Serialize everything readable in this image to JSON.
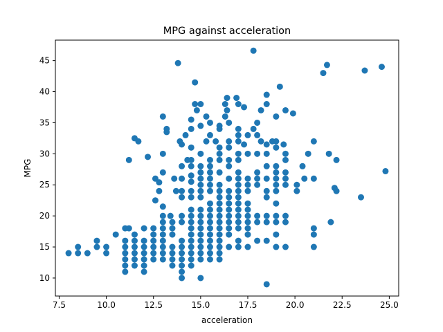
{
  "chart_data": {
    "type": "scatter",
    "title": "MPG against acceleration",
    "xlabel": "acceleration",
    "ylabel": "MPG",
    "xlim": [
      7.3,
      25.5
    ],
    "ylim": [
      7.1,
      48.3
    ],
    "xticks": [
      7.5,
      10.0,
      12.5,
      15.0,
      17.5,
      20.0,
      22.5,
      25.0
    ],
    "xtick_labels": [
      "7.5",
      "10.0",
      "12.5",
      "15.0",
      "17.5",
      "20.0",
      "22.5",
      "25.0"
    ],
    "yticks": [
      10,
      15,
      20,
      25,
      30,
      35,
      40,
      45
    ],
    "ytick_labels": [
      "10",
      "15",
      "20",
      "25",
      "30",
      "35",
      "40",
      "45"
    ],
    "grid": false,
    "color": "#1f77b4",
    "points": [
      [
        8.0,
        14
      ],
      [
        8.5,
        14
      ],
      [
        8.5,
        15
      ],
      [
        9.0,
        14
      ],
      [
        9.5,
        16
      ],
      [
        9.5,
        15
      ],
      [
        10.0,
        15
      ],
      [
        10.0,
        14
      ],
      [
        10.5,
        17
      ],
      [
        11.0,
        18
      ],
      [
        11.2,
        18
      ],
      [
        11.0,
        16
      ],
      [
        11.0,
        15
      ],
      [
        11.0,
        14
      ],
      [
        11.0,
        13
      ],
      [
        11.0,
        12
      ],
      [
        11.0,
        11
      ],
      [
        11.2,
        29
      ],
      [
        11.5,
        32.5
      ],
      [
        11.7,
        32
      ],
      [
        11.5,
        17
      ],
      [
        11.5,
        16
      ],
      [
        11.5,
        15
      ],
      [
        11.5,
        14
      ],
      [
        11.5,
        13
      ],
      [
        11.5,
        12
      ],
      [
        12.0,
        18
      ],
      [
        12.0,
        16
      ],
      [
        12.0,
        15
      ],
      [
        12.0,
        14
      ],
      [
        12.0,
        13
      ],
      [
        12.0,
        12
      ],
      [
        12.0,
        11
      ],
      [
        12.2,
        29.5
      ],
      [
        12.5,
        18
      ],
      [
        12.5,
        17
      ],
      [
        12.5,
        16
      ],
      [
        12.5,
        15
      ],
      [
        12.5,
        14
      ],
      [
        12.5,
        13
      ],
      [
        12.6,
        26
      ],
      [
        12.8,
        24
      ],
      [
        12.8,
        25.4
      ],
      [
        12.6,
        22.5
      ],
      [
        13.0,
        36
      ],
      [
        13.0,
        30
      ],
      [
        13.0,
        27
      ],
      [
        13.0,
        21.5
      ],
      [
        13.0,
        20
      ],
      [
        13.0,
        19
      ],
      [
        13.0,
        18
      ],
      [
        13.0,
        17
      ],
      [
        13.0,
        16
      ],
      [
        13.0,
        15
      ],
      [
        13.0,
        14
      ],
      [
        13.0,
        13
      ],
      [
        13.2,
        34
      ],
      [
        13.2,
        33.5
      ],
      [
        13.4,
        20
      ],
      [
        13.5,
        19
      ],
      [
        13.5,
        18
      ],
      [
        13.5,
        17
      ],
      [
        13.5,
        15
      ],
      [
        13.5,
        14
      ],
      [
        13.5,
        13
      ],
      [
        13.5,
        12
      ],
      [
        13.6,
        26
      ],
      [
        13.7,
        24
      ],
      [
        13.8,
        44.6
      ],
      [
        13.9,
        32
      ],
      [
        14.0,
        31.5
      ],
      [
        14.0,
        28
      ],
      [
        14.0,
        26
      ],
      [
        14.0,
        24
      ],
      [
        14.0,
        23
      ],
      [
        14.0,
        20
      ],
      [
        14.0,
        19
      ],
      [
        14.0,
        16
      ],
      [
        14.0,
        15
      ],
      [
        14.0,
        14
      ],
      [
        14.0,
        13
      ],
      [
        14.0,
        12
      ],
      [
        14.0,
        11
      ],
      [
        14.0,
        10
      ],
      [
        14.2,
        33
      ],
      [
        14.3,
        29
      ],
      [
        14.5,
        35.5
      ],
      [
        14.5,
        34
      ],
      [
        14.5,
        31
      ],
      [
        14.5,
        29
      ],
      [
        14.5,
        28
      ],
      [
        14.5,
        26.5
      ],
      [
        14.5,
        25.5
      ],
      [
        14.5,
        24
      ],
      [
        14.5,
        23
      ],
      [
        14.5,
        21
      ],
      [
        14.5,
        20
      ],
      [
        14.5,
        19
      ],
      [
        14.5,
        18
      ],
      [
        14.5,
        17
      ],
      [
        14.5,
        16
      ],
      [
        14.5,
        15
      ],
      [
        14.5,
        14
      ],
      [
        14.5,
        13
      ],
      [
        14.5,
        12
      ],
      [
        14.7,
        41.5
      ],
      [
        14.7,
        38
      ],
      [
        14.8,
        37
      ],
      [
        15.0,
        38
      ],
      [
        15.0,
        34.5
      ],
      [
        15.0,
        30
      ],
      [
        15.0,
        28
      ],
      [
        15.0,
        27
      ],
      [
        15.0,
        26
      ],
      [
        15.0,
        25
      ],
      [
        15.0,
        24
      ],
      [
        15.0,
        23
      ],
      [
        15.0,
        21
      ],
      [
        15.0,
        20
      ],
      [
        15.0,
        19
      ],
      [
        15.0,
        18
      ],
      [
        15.0,
        17
      ],
      [
        15.0,
        16
      ],
      [
        15.0,
        15
      ],
      [
        15.0,
        14
      ],
      [
        15.0,
        13
      ],
      [
        15.0,
        10
      ],
      [
        15.3,
        36
      ],
      [
        15.3,
        32
      ],
      [
        15.5,
        35
      ],
      [
        15.5,
        33
      ],
      [
        15.5,
        29
      ],
      [
        15.5,
        28
      ],
      [
        15.5,
        27
      ],
      [
        15.5,
        26
      ],
      [
        15.5,
        25
      ],
      [
        15.5,
        24
      ],
      [
        15.5,
        22
      ],
      [
        15.5,
        21
      ],
      [
        15.5,
        20
      ],
      [
        15.5,
        19
      ],
      [
        15.5,
        18
      ],
      [
        15.5,
        17
      ],
      [
        15.5,
        16
      ],
      [
        15.5,
        15
      ],
      [
        15.5,
        14
      ],
      [
        15.5,
        13
      ],
      [
        15.8,
        32
      ],
      [
        16.0,
        34.5
      ],
      [
        16.0,
        34
      ],
      [
        16.0,
        31
      ],
      [
        16.0,
        30
      ],
      [
        16.0,
        29
      ],
      [
        16.0,
        27
      ],
      [
        16.0,
        25
      ],
      [
        16.0,
        24
      ],
      [
        16.0,
        23
      ],
      [
        16.0,
        22
      ],
      [
        16.0,
        21
      ],
      [
        16.0,
        20
      ],
      [
        16.0,
        19
      ],
      [
        16.0,
        18
      ],
      [
        16.0,
        17
      ],
      [
        16.0,
        16
      ],
      [
        16.0,
        15
      ],
      [
        16.0,
        14
      ],
      [
        16.0,
        13
      ],
      [
        16.3,
        38
      ],
      [
        16.3,
        36
      ],
      [
        16.4,
        39
      ],
      [
        16.4,
        37
      ],
      [
        16.5,
        35
      ],
      [
        16.5,
        32
      ],
      [
        16.5,
        31
      ],
      [
        16.5,
        29
      ],
      [
        16.5,
        28
      ],
      [
        16.5,
        26
      ],
      [
        16.5,
        24
      ],
      [
        16.5,
        23
      ],
      [
        16.5,
        22
      ],
      [
        16.5,
        21
      ],
      [
        16.5,
        20
      ],
      [
        16.5,
        19
      ],
      [
        16.5,
        18
      ],
      [
        16.5,
        17
      ],
      [
        16.5,
        15
      ],
      [
        16.9,
        39
      ],
      [
        17.0,
        38
      ],
      [
        17.0,
        34
      ],
      [
        17.0,
        33
      ],
      [
        17.0,
        32
      ],
      [
        17.0,
        30
      ],
      [
        17.0,
        29
      ],
      [
        17.0,
        27
      ],
      [
        17.0,
        26
      ],
      [
        17.0,
        25
      ],
      [
        17.0,
        24
      ],
      [
        17.0,
        23
      ],
      [
        17.0,
        22
      ],
      [
        17.0,
        21
      ],
      [
        17.0,
        20
      ],
      [
        17.0,
        19
      ],
      [
        17.0,
        18
      ],
      [
        17.0,
        16
      ],
      [
        17.0,
        15
      ],
      [
        17.3,
        37.5
      ],
      [
        17.3,
        31.5
      ],
      [
        17.5,
        33
      ],
      [
        17.5,
        30
      ],
      [
        17.5,
        26
      ],
      [
        17.5,
        25
      ],
      [
        17.5,
        24
      ],
      [
        17.5,
        22
      ],
      [
        17.5,
        21
      ],
      [
        17.5,
        20
      ],
      [
        17.5,
        19
      ],
      [
        17.5,
        18
      ],
      [
        17.5,
        17
      ],
      [
        17.5,
        15
      ],
      [
        17.8,
        46.6
      ],
      [
        17.8,
        34
      ],
      [
        18.0,
        35
      ],
      [
        18.0,
        33
      ],
      [
        18.0,
        30
      ],
      [
        18.0,
        27
      ],
      [
        18.0,
        26
      ],
      [
        18.0,
        25
      ],
      [
        18.0,
        20
      ],
      [
        18.0,
        19
      ],
      [
        18.0,
        16
      ],
      [
        18.2,
        37
      ],
      [
        18.2,
        32
      ],
      [
        18.5,
        39.5
      ],
      [
        18.5,
        38
      ],
      [
        18.5,
        31.5
      ],
      [
        18.5,
        30
      ],
      [
        18.5,
        28
      ],
      [
        18.5,
        26
      ],
      [
        18.5,
        24
      ],
      [
        18.5,
        23
      ],
      [
        18.5,
        20
      ],
      [
        18.5,
        19
      ],
      [
        18.5,
        16
      ],
      [
        18.5,
        9
      ],
      [
        18.8,
        32
      ],
      [
        19.0,
        36
      ],
      [
        19.0,
        32
      ],
      [
        19.0,
        31
      ],
      [
        19.0,
        28
      ],
      [
        19.0,
        27
      ],
      [
        19.0,
        26
      ],
      [
        19.0,
        25
      ],
      [
        19.0,
        24
      ],
      [
        19.0,
        22
      ],
      [
        19.0,
        20
      ],
      [
        19.0,
        19
      ],
      [
        19.0,
        17
      ],
      [
        19.0,
        15
      ],
      [
        19.2,
        40.8
      ],
      [
        19.4,
        31.5
      ],
      [
        19.5,
        37
      ],
      [
        19.5,
        30
      ],
      [
        19.5,
        29
      ],
      [
        19.5,
        27
      ],
      [
        19.5,
        26
      ],
      [
        19.5,
        25
      ],
      [
        19.5,
        20
      ],
      [
        19.5,
        19
      ],
      [
        19.5,
        15
      ],
      [
        19.9,
        36.5
      ],
      [
        20.1,
        25
      ],
      [
        20.1,
        24
      ],
      [
        20.4,
        28
      ],
      [
        20.5,
        26
      ],
      [
        20.7,
        30
      ],
      [
        21.0,
        32
      ],
      [
        21.0,
        26
      ],
      [
        21.0,
        18
      ],
      [
        21.0,
        17
      ],
      [
        21.0,
        15
      ],
      [
        21.5,
        43
      ],
      [
        21.7,
        44.3
      ],
      [
        21.8,
        30
      ],
      [
        21.9,
        19
      ],
      [
        22.1,
        24.5
      ],
      [
        22.2,
        29
      ],
      [
        22.2,
        24
      ],
      [
        23.5,
        23
      ],
      [
        23.7,
        43.4
      ],
      [
        24.6,
        44
      ],
      [
        24.8,
        27.2
      ]
    ]
  }
}
